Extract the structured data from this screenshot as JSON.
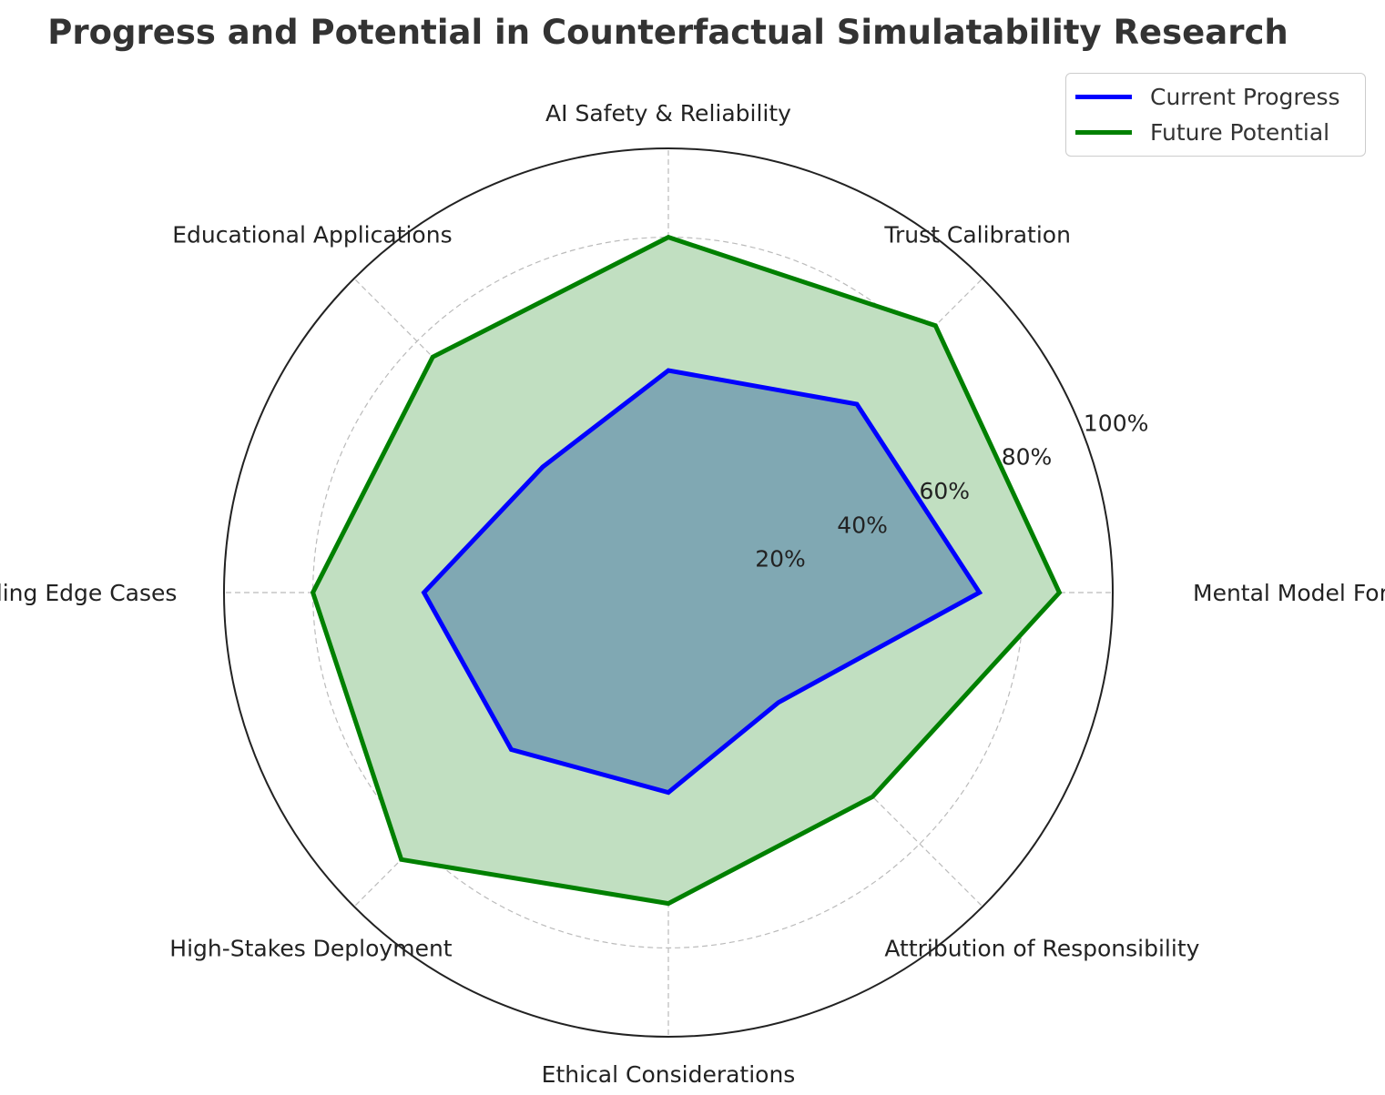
{
  "chart_data": {
    "type": "radar",
    "title": "Progress and Potential in Counterfactual Simulatability Research",
    "categories": [
      "Mental Model Formation",
      "Trust Calibration",
      "AI Safety & Reliability",
      "Educational Applications",
      "Understanding Edge Cases",
      "High-Stakes Deployment",
      "Ethical Considerations",
      "Attribution of Responsibility"
    ],
    "series": [
      {
        "name": "Current Progress",
        "color": "#0000ff",
        "fill": "#4a7aa8",
        "values": [
          70,
          60,
          50,
          40,
          55,
          50,
          45,
          35
        ]
      },
      {
        "name": "Future Potential",
        "color": "#008000",
        "fill": "#c1dfc1",
        "values": [
          88,
          85,
          80,
          75,
          80,
          85,
          70,
          65
        ]
      }
    ],
    "r_ticks": [
      20,
      40,
      60,
      80,
      100
    ],
    "r_tick_labels": [
      "20%",
      "40%",
      "60%",
      "80%",
      "100%"
    ],
    "rlim": [
      0,
      100
    ],
    "grid": true,
    "legend_position": "top-right"
  }
}
